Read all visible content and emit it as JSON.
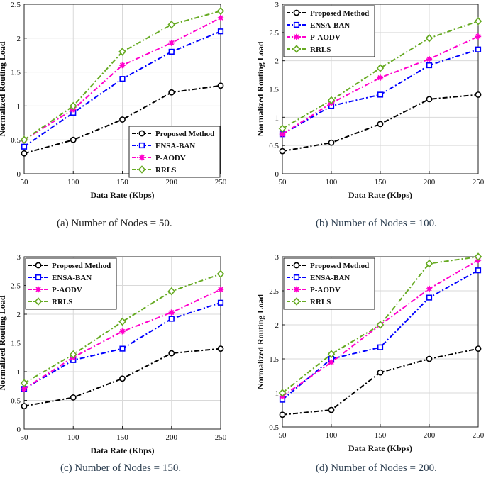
{
  "chart_data": [
    {
      "type": "line",
      "panel": "a",
      "caption": "(a)  Number of Nodes = 50.",
      "xlabel": "Data Rate (Kbps)",
      "ylabel": "Normalized Routing Load",
      "x": [
        50,
        100,
        150,
        200,
        250
      ],
      "xticks": [
        "50",
        "100",
        "150",
        "200",
        "250"
      ],
      "ylim": [
        0,
        2.5
      ],
      "yticks": [
        "0",
        "0.5",
        "1",
        "1.5",
        "2",
        "2.5"
      ],
      "grid": true,
      "legend": "bottom-right",
      "series": [
        {
          "name": "Proposed Method",
          "values": [
            0.3,
            0.5,
            0.8,
            1.2,
            1.3
          ]
        },
        {
          "name": "ENSA-BAN",
          "values": [
            0.4,
            0.9,
            1.4,
            1.8,
            2.1
          ]
        },
        {
          "name": "P-AODV",
          "values": [
            0.5,
            0.95,
            1.6,
            1.93,
            2.3
          ]
        },
        {
          "name": "RRLS",
          "values": [
            0.5,
            1.0,
            1.8,
            2.2,
            2.4
          ]
        }
      ]
    },
    {
      "type": "line",
      "panel": "b",
      "caption": "(b)  Number of Nodes = 100.",
      "xlabel": "Data Rate (Kbps)",
      "ylabel": "Normalized Routing Load",
      "x": [
        50,
        100,
        150,
        200,
        250
      ],
      "xticks": [
        "50",
        "100",
        "150",
        "200",
        "250"
      ],
      "ylim": [
        0,
        3
      ],
      "yticks": [
        "0",
        "0.5",
        "1",
        "1.5",
        "2",
        "2.5",
        "3"
      ],
      "grid": true,
      "legend": "top-left",
      "series": [
        {
          "name": "Proposed Method",
          "values": [
            0.4,
            0.55,
            0.88,
            1.32,
            1.4
          ]
        },
        {
          "name": "ENSA-BAN",
          "values": [
            0.7,
            1.2,
            1.4,
            1.92,
            2.2
          ]
        },
        {
          "name": "P-AODV",
          "values": [
            0.7,
            1.25,
            1.7,
            2.03,
            2.43
          ]
        },
        {
          "name": "RRLS",
          "values": [
            0.8,
            1.3,
            1.87,
            2.4,
            2.7
          ]
        }
      ]
    },
    {
      "type": "line",
      "panel": "c",
      "caption": "(c)  Number of Nodes = 150.",
      "xlabel": "Data Rate (Kbps)",
      "ylabel": "Normalized Routing Load",
      "x": [
        50,
        100,
        150,
        200,
        250
      ],
      "xticks": [
        "50",
        "100",
        "150",
        "200",
        "250"
      ],
      "ylim": [
        0,
        3
      ],
      "yticks": [
        "0",
        "0.5",
        "1",
        "1.5",
        "2",
        "2.5",
        "3"
      ],
      "grid": true,
      "legend": "top-left",
      "series": [
        {
          "name": "Proposed Method",
          "values": [
            0.4,
            0.55,
            0.88,
            1.32,
            1.4
          ]
        },
        {
          "name": "ENSA-BAN",
          "values": [
            0.7,
            1.2,
            1.4,
            1.92,
            2.2
          ]
        },
        {
          "name": "P-AODV",
          "values": [
            0.7,
            1.25,
            1.7,
            2.03,
            2.43
          ]
        },
        {
          "name": "RRLS",
          "values": [
            0.8,
            1.3,
            1.87,
            2.4,
            2.7
          ]
        }
      ]
    },
    {
      "type": "line",
      "panel": "d",
      "caption": "(d)  Number of Nodes = 200.",
      "xlabel": "Data Rate (Kbps)",
      "ylabel": "Normalized Routing Load",
      "x": [
        50,
        100,
        150,
        200,
        250
      ],
      "xticks": [
        "50",
        "100",
        "150",
        "200",
        "250"
      ],
      "ylim": [
        0.5,
        3
      ],
      "yticks": [
        "0.5",
        "1",
        "1.5",
        "2",
        "2.5",
        "3"
      ],
      "grid": true,
      "legend": "top-left",
      "series": [
        {
          "name": "Proposed Method",
          "values": [
            0.68,
            0.75,
            1.3,
            1.5,
            1.65
          ]
        },
        {
          "name": "ENSA-BAN",
          "values": [
            0.9,
            1.5,
            1.67,
            2.4,
            2.8
          ]
        },
        {
          "name": "P-AODV",
          "values": [
            0.95,
            1.45,
            2.0,
            2.53,
            2.95
          ]
        },
        {
          "name": "RRLS",
          "values": [
            1.0,
            1.57,
            2.0,
            2.9,
            3.0
          ]
        }
      ]
    }
  ],
  "styles": {
    "Proposed Method": {
      "color": "#000000",
      "marker": "circle"
    },
    "ENSA-BAN": {
      "color": "#0000ff",
      "marker": "square"
    },
    "P-AODV": {
      "color": "#ff00cc",
      "marker": "star"
    },
    "RRLS": {
      "color": "#66aa22",
      "marker": "diamond"
    }
  }
}
